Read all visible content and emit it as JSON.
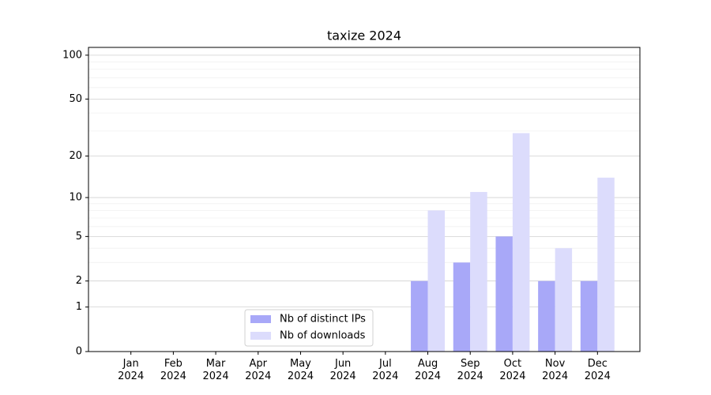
{
  "chart_data": {
    "type": "bar",
    "title": "taxize 2024",
    "categories": [
      "Jan\n2024",
      "Feb\n2024",
      "Mar\n2024",
      "Apr\n2024",
      "May\n2024",
      "Jun\n2024",
      "Jul\n2024",
      "Aug\n2024",
      "Sep\n2024",
      "Oct\n2024",
      "Nov\n2024",
      "Dec\n2024"
    ],
    "series": [
      {
        "name": "Nb of distinct IPs",
        "color": "#a8a8f8",
        "values": [
          0,
          0,
          0,
          0,
          0,
          0,
          0,
          2,
          3,
          5,
          2,
          2
        ]
      },
      {
        "name": "Nb of downloads",
        "color": "#dcdcfc",
        "values": [
          0,
          0,
          0,
          0,
          0,
          0,
          0,
          8,
          11,
          29,
          4,
          14
        ]
      }
    ],
    "y_scale": "log1p",
    "ylim": [
      0,
      113
    ],
    "yticks": [
      0,
      1,
      2,
      5,
      10,
      20,
      50,
      100
    ],
    "minor_yticks": [
      3,
      4,
      6,
      7,
      8,
      9,
      30,
      40,
      60,
      70,
      80,
      90
    ],
    "grid": true,
    "legend": "lower center"
  }
}
